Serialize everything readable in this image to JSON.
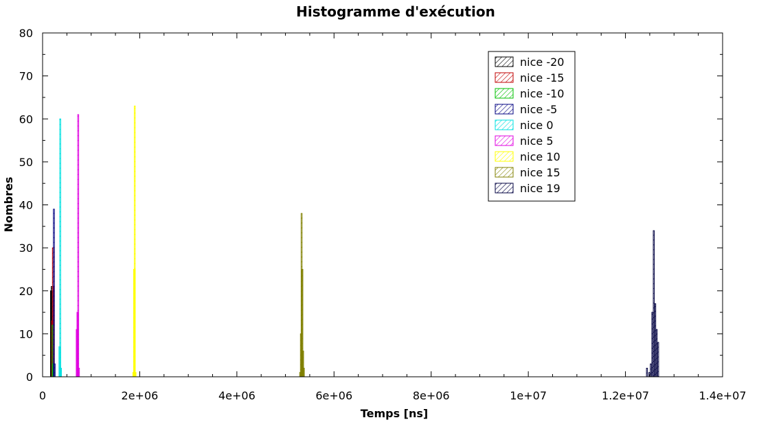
{
  "chart_data": {
    "type": "bar",
    "title": "Histogramme d'exécution",
    "xlabel": "Temps [ns]",
    "ylabel": "Nombres",
    "xlim": [
      0,
      14000000
    ],
    "ylim": [
      0,
      80
    ],
    "x_ticks": [
      0,
      2000000,
      4000000,
      6000000,
      8000000,
      10000000,
      12000000,
      14000000
    ],
    "x_tick_labels": [
      "0",
      "2e+06",
      "4e+06",
      "6e+06",
      "8e+06",
      "1e+07",
      "1.2e+07",
      "1.4e+07"
    ],
    "y_ticks": [
      0,
      10,
      20,
      30,
      40,
      50,
      60,
      70,
      80
    ],
    "y_tick_labels": [
      "0",
      "10",
      "20",
      "30",
      "40",
      "50",
      "60",
      "70",
      "80"
    ],
    "grid": false,
    "legend_position": "top-right",
    "bar_width": 15000,
    "series": [
      {
        "name": "nice -20",
        "color": "#000000",
        "x": [
          170000,
          185000,
          200000
        ],
        "values": [
          20,
          21,
          12
        ]
      },
      {
        "name": "nice -15",
        "color": "#c00000",
        "x": [
          195000,
          210000,
          225000
        ],
        "values": [
          13,
          30,
          21
        ]
      },
      {
        "name": "nice -10",
        "color": "#00c000",
        "x": [
          205000,
          220000
        ],
        "values": [
          12,
          3
        ]
      },
      {
        "name": "nice -5",
        "color": "#000080",
        "x": [
          230000,
          245000
        ],
        "values": [
          39,
          3
        ]
      },
      {
        "name": "nice 0",
        "color": "#00e0e0",
        "x": [
          345000,
          360000,
          375000
        ],
        "values": [
          7,
          60,
          2
        ]
      },
      {
        "name": "nice 5",
        "color": "#e000e0",
        "x": [
          700000,
          715000,
          730000,
          745000
        ],
        "values": [
          11,
          15,
          61,
          2
        ]
      },
      {
        "name": "nice 10",
        "color": "#ffff00",
        "x": [
          1865000,
          1880000,
          1895000,
          1910000
        ],
        "values": [
          1,
          25,
          63,
          1
        ]
      },
      {
        "name": "nice 15",
        "color": "#808000",
        "x": [
          5300000,
          5315000,
          5330000,
          5345000,
          5360000,
          5375000
        ],
        "values": [
          1,
          10,
          38,
          25,
          6,
          2
        ]
      },
      {
        "name": "nice 19",
        "color": "#000040",
        "x": [
          12440000,
          12490000,
          12520000,
          12550000,
          12580000,
          12610000,
          12640000,
          12670000
        ],
        "values": [
          2,
          1,
          3,
          15,
          34,
          17,
          11,
          8
        ]
      }
    ]
  }
}
